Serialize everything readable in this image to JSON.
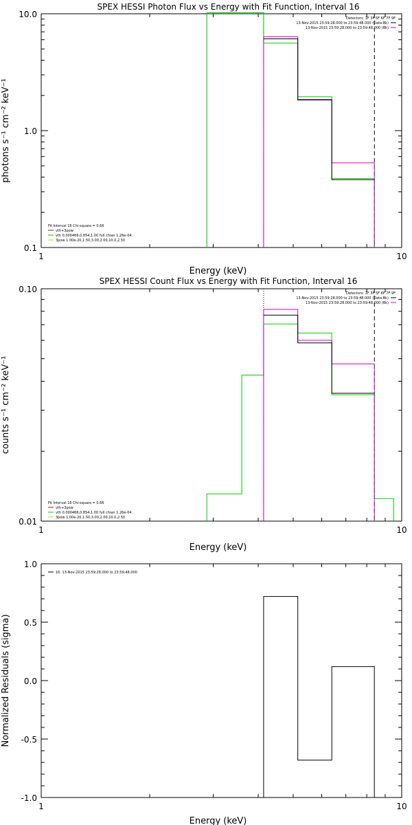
{
  "chart_data": [
    {
      "type": "line",
      "panel": "photon-flux",
      "title": "SPEX HESSI Photon Flux vs Energy with Fit Function, Interval 16",
      "xlabel": "Energy (keV)",
      "ylabel": "photons s⁻¹ cm⁻² keV⁻¹",
      "xscale": "log",
      "yscale": "log",
      "xlim": [
        1,
        10
      ],
      "ylim": [
        0.1,
        10
      ],
      "xticklabels": [
        {
          "v": 1,
          "t": "1"
        },
        {
          "v": 10,
          "t": "10"
        }
      ],
      "yticklabels": [
        {
          "v": 0.1,
          "t": "0.1"
        },
        {
          "v": 1,
          "t": "1.0"
        },
        {
          "v": 10,
          "t": "10.0"
        }
      ],
      "info_lines": [
        "Detectors: 1F 3F 5F 6F 7F 9F",
        "13-Nov-2015 23:59:28.000 to 23:59:48.000 (Data-Bk)",
        "13-Nov-2015 23:59:28.000 to 23:59:48.000 (Bk)"
      ],
      "info_colors": [
        "",
        "#000000",
        "#cc00cc"
      ],
      "legend_lines": [
        "Fit Interval 16   Chi-square = 0.66",
        "vth+3pow",
        "vth 0.000466,0.854,1.00  full chian 1.26e-04",
        "3pow 1.00e-20,1.50,3.00,2.00,10.0,2.50"
      ],
      "legend_colors": [
        "",
        "#cc0000",
        "#00cc00",
        "#cccc00"
      ],
      "vlines": [
        {
          "x": 2.88,
          "style": "dot",
          "color": "#00cc00"
        },
        {
          "x": 4.14,
          "style": "dot",
          "color": "#000000"
        },
        {
          "x": 8.4,
          "style": "dash",
          "color": "#000000"
        }
      ],
      "edges": [
        4.14,
        5.15,
        6.4,
        8.4
      ],
      "series": [
        {
          "color": "#00cc00",
          "x": [
            2.88,
            2.88,
            4.14,
            4.14,
            5.15,
            5.15,
            6.4,
            6.4,
            8.4,
            8.4
          ],
          "y": [
            0.1,
            10.2,
            10.2,
            5.6,
            5.6,
            1.95,
            1.95,
            0.39,
            0.39,
            0.1
          ]
        },
        {
          "color": "#cc00cc",
          "x": [
            4.14,
            4.14,
            5.15,
            5.15,
            6.4,
            6.4,
            8.4,
            8.4
          ],
          "y": [
            0.1,
            6.35,
            6.35,
            1.85,
            1.85,
            0.53,
            0.53,
            0.1
          ]
        },
        {
          "color": "#000000",
          "x": [
            4.14,
            5.15,
            5.15,
            6.4,
            6.4,
            8.4
          ],
          "y": [
            6.1,
            6.1,
            1.83,
            1.83,
            0.38,
            0.38
          ]
        }
      ]
    },
    {
      "type": "line",
      "panel": "count-flux",
      "title": "SPEX HESSI Count Flux vs Energy with Fit Function, Interval 16",
      "xlabel": "Energy (keV)",
      "ylabel": "counts s⁻¹ cm⁻² keV⁻¹",
      "xscale": "log",
      "yscale": "log",
      "xlim": [
        1,
        10
      ],
      "ylim": [
        0.01,
        0.1
      ],
      "xticklabels": [
        {
          "v": 1,
          "t": "1"
        },
        {
          "v": 10,
          "t": "10"
        }
      ],
      "yticklabels": [
        {
          "v": 0.01,
          "t": "0.01"
        },
        {
          "v": 0.1,
          "t": "0.10"
        }
      ],
      "info_lines": [
        "Detectors: 1F 3F 5F 6F 7F 9F",
        "13-Nov-2015 23:59:28.000 to 23:59:48.000 (Data-Bk)",
        "13-Nov-2015 23:59:28.000 to 23:59:48.000 (Bk)"
      ],
      "info_colors": [
        "",
        "#000000",
        "#cc00cc"
      ],
      "legend_lines": [
        "Fit Interval 16   Chi-square = 0.66",
        "vth+3pow",
        "vth 0.000466,0.854,1.00  full chian 1.26e-04",
        "3pow 1.00e-20,1.50,3.00,2.00,10.0,2.50"
      ],
      "legend_colors": [
        "",
        "#cc0000",
        "#00cc00",
        "#cccc00"
      ],
      "vlines": [
        {
          "x": 4.14,
          "style": "dot",
          "color": "#000000"
        },
        {
          "x": 8.4,
          "style": "dash",
          "color": "#000000"
        }
      ],
      "edges": [
        4.14,
        5.15,
        6.4,
        8.4
      ],
      "series": [
        {
          "color": "#00cc00",
          "x": [
            2.88,
            2.88,
            3.6,
            3.6,
            4.14,
            4.14,
            5.15,
            5.15,
            6.4,
            6.4,
            8.4,
            8.4,
            9.5,
            9.5
          ],
          "y": [
            0.01,
            0.0131,
            0.0131,
            0.0425,
            0.0425,
            0.0705,
            0.0705,
            0.0645,
            0.0645,
            0.035,
            0.035,
            0.0125,
            0.0125,
            0.01
          ]
        },
        {
          "color": "#cc00cc",
          "x": [
            4.14,
            4.14,
            5.15,
            5.15,
            6.4,
            6.4,
            8.4,
            8.4
          ],
          "y": [
            0.01,
            0.0815,
            0.0815,
            0.06,
            0.06,
            0.0475,
            0.0475,
            0.01
          ]
        },
        {
          "color": "#000000",
          "x": [
            4.14,
            5.15,
            5.15,
            6.4,
            6.4,
            8.4
          ],
          "y": [
            0.077,
            0.077,
            0.0585,
            0.0585,
            0.0355,
            0.0355
          ]
        }
      ]
    },
    {
      "type": "line",
      "panel": "residuals",
      "title": "",
      "xlabel": "Energy (keV)",
      "ylabel": "Normalized Residuals (sigma)",
      "xscale": "log",
      "yscale": "linear",
      "xlim": [
        1,
        10
      ],
      "ylim": [
        -1.0,
        1.0
      ],
      "xticklabels": [
        {
          "v": 1,
          "t": "1"
        },
        {
          "v": 10,
          "t": "10"
        }
      ],
      "yticklabels": [
        {
          "v": -1.0,
          "t": "-1.0"
        },
        {
          "v": -0.5,
          "t": "-0.5"
        },
        {
          "v": 0.0,
          "t": "0.0"
        },
        {
          "v": 0.5,
          "t": "0.5"
        },
        {
          "v": 1.0,
          "t": "1.0"
        }
      ],
      "info_lines": [],
      "info_colors": [],
      "legend_lines": [
        "16. 13-Nov-2015 23:59:28.000 to 23:59:48.000"
      ],
      "legend_colors": [
        "#000000"
      ],
      "vlines": [],
      "series": [
        {
          "color": "#000000",
          "x": [
            4.14,
            4.14,
            5.15,
            5.15,
            6.4,
            6.4,
            8.4,
            8.4
          ],
          "y": [
            -1.0,
            0.72,
            0.72,
            -0.68,
            -0.68,
            0.12,
            0.12,
            -1.0
          ]
        }
      ]
    }
  ]
}
